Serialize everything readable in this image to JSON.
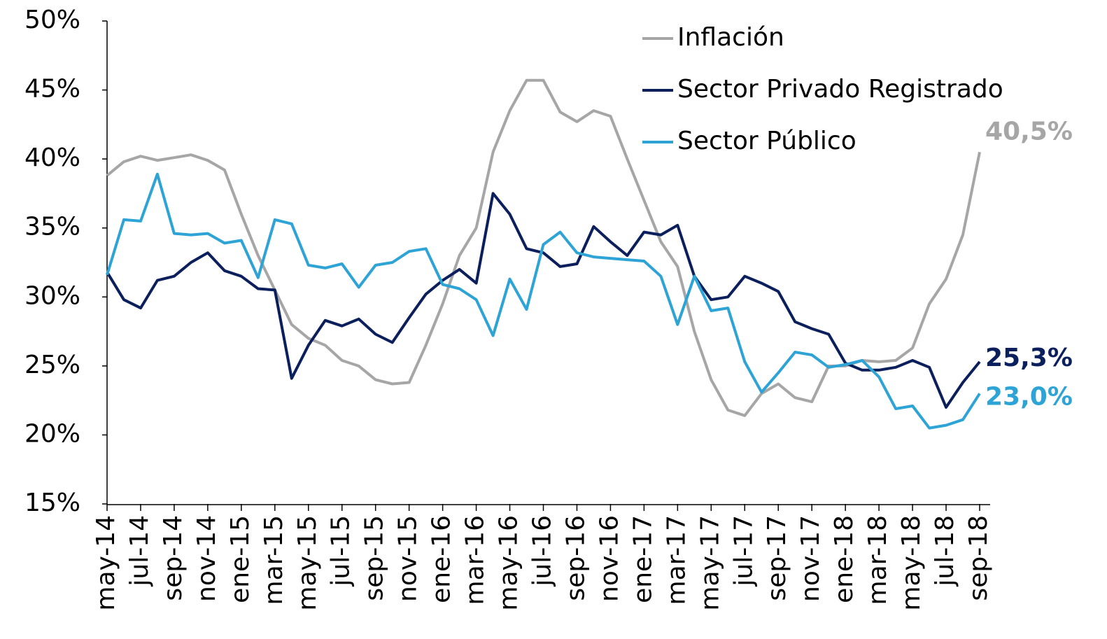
{
  "chart_data": {
    "type": "line",
    "categories": [
      "may-14",
      null,
      "jul-14",
      null,
      "sep-14",
      null,
      "nov-14",
      null,
      "ene-15",
      null,
      "mar-15",
      null,
      "may-15",
      null,
      "jul-15",
      null,
      "sep-15",
      null,
      "nov-15",
      null,
      "ene-16",
      null,
      "mar-16",
      null,
      "may-16",
      null,
      "jul-16",
      null,
      "sep-16",
      null,
      "nov-16",
      null,
      "ene-17",
      null,
      "mar-17",
      null,
      "may-17",
      null,
      "jul-17",
      null,
      "sep-17",
      null,
      "nov-17",
      null,
      "ene-18",
      null,
      "mar-18",
      null,
      "may-18",
      null,
      "jul-18",
      null,
      "sep-18"
    ],
    "series": [
      {
        "name": "Inflación",
        "color": "#a6a6a6",
        "values": [
          38.8,
          39.8,
          40.2,
          39.9,
          40.1,
          40.3,
          39.9,
          39.2,
          36.0,
          33.0,
          30.5,
          28.0,
          27.0,
          26.5,
          25.4,
          25.0,
          24.0,
          23.7,
          23.8,
          26.5,
          29.5,
          33.0,
          35.0,
          40.5,
          43.5,
          45.7,
          45.7,
          43.4,
          42.7,
          43.5,
          43.1,
          40.0,
          37.0,
          34.0,
          32.2,
          27.5,
          24.0,
          21.8,
          21.4,
          23.0,
          23.7,
          22.7,
          22.4,
          25.0,
          25.0,
          25.4,
          25.3,
          25.4,
          26.3,
          29.5,
          31.3,
          34.5,
          40.5
        ],
        "value_labels": [
          null,
          null,
          null,
          null,
          null,
          null,
          null,
          null,
          null,
          null,
          null,
          null,
          null,
          null,
          null,
          null,
          null,
          null,
          null,
          null,
          null,
          null,
          null,
          null,
          null,
          null,
          null,
          null,
          null,
          null,
          null,
          null,
          null,
          null,
          null,
          null,
          null,
          null,
          null,
          null,
          null,
          null,
          null,
          null,
          null,
          null,
          null,
          null,
          null,
          null,
          null,
          null,
          "40,5%"
        ]
      },
      {
        "name": "Sector Privado Registrado",
        "color": "#0b1f5c",
        "values": [
          31.8,
          29.8,
          29.2,
          31.2,
          31.5,
          32.5,
          33.2,
          31.9,
          31.5,
          30.6,
          30.5,
          24.1,
          26.5,
          28.3,
          27.9,
          28.4,
          27.3,
          26.7,
          28.5,
          30.2,
          31.2,
          32.0,
          31.0,
          37.5,
          36.0,
          33.5,
          33.2,
          32.2,
          32.4,
          35.1,
          34.0,
          33.0,
          34.7,
          34.5,
          35.2,
          31.5,
          29.8,
          30.0,
          31.5,
          31.0,
          30.4,
          28.2,
          27.7,
          27.3,
          25.2,
          24.7,
          24.7,
          24.9,
          25.4,
          24.9,
          22.0,
          23.8,
          25.3
        ],
        "value_labels": [
          null,
          null,
          null,
          null,
          null,
          null,
          null,
          null,
          null,
          null,
          null,
          null,
          null,
          null,
          null,
          null,
          null,
          null,
          null,
          null,
          null,
          null,
          null,
          null,
          null,
          null,
          null,
          null,
          null,
          null,
          null,
          null,
          null,
          null,
          null,
          null,
          null,
          null,
          null,
          null,
          null,
          null,
          null,
          null,
          null,
          null,
          null,
          null,
          null,
          null,
          null,
          null,
          "25,3%"
        ]
      },
      {
        "name": "Sector Público",
        "color": "#2ea3d6",
        "values": [
          31.6,
          35.6,
          35.5,
          38.9,
          34.6,
          34.5,
          34.6,
          33.9,
          34.1,
          31.4,
          35.6,
          35.3,
          32.3,
          32.1,
          32.4,
          30.7,
          32.3,
          32.5,
          33.3,
          33.5,
          30.9,
          30.6,
          29.8,
          27.2,
          31.3,
          29.1,
          33.8,
          34.7,
          33.2,
          32.9,
          32.8,
          32.7,
          32.6,
          31.5,
          28.0,
          31.5,
          29.0,
          29.2,
          25.3,
          23.1,
          24.5,
          26.0,
          25.8,
          24.9,
          25.1,
          25.4,
          24.2,
          21.9,
          22.1,
          20.5,
          20.7,
          21.1,
          23.0
        ],
        "value_labels": [
          null,
          null,
          null,
          null,
          null,
          null,
          null,
          null,
          null,
          null,
          null,
          null,
          null,
          null,
          null,
          null,
          null,
          null,
          null,
          null,
          null,
          null,
          null,
          null,
          null,
          null,
          null,
          null,
          null,
          null,
          null,
          null,
          null,
          null,
          null,
          null,
          null,
          null,
          null,
          null,
          null,
          null,
          null,
          null,
          null,
          null,
          null,
          null,
          null,
          null,
          null,
          null,
          "23,0%"
        ]
      }
    ],
    "ylim": [
      15,
      50
    ],
    "yticks": [
      {
        "value": 15,
        "label": "15%"
      },
      {
        "value": 20,
        "label": "20%"
      },
      {
        "value": 25,
        "label": "25%"
      },
      {
        "value": 30,
        "label": "30%"
      },
      {
        "value": 35,
        "label": "35%"
      },
      {
        "value": 40,
        "label": "40%"
      },
      {
        "value": 45,
        "label": "45%"
      },
      {
        "value": 50,
        "label": "50%"
      }
    ],
    "grid": false
  }
}
